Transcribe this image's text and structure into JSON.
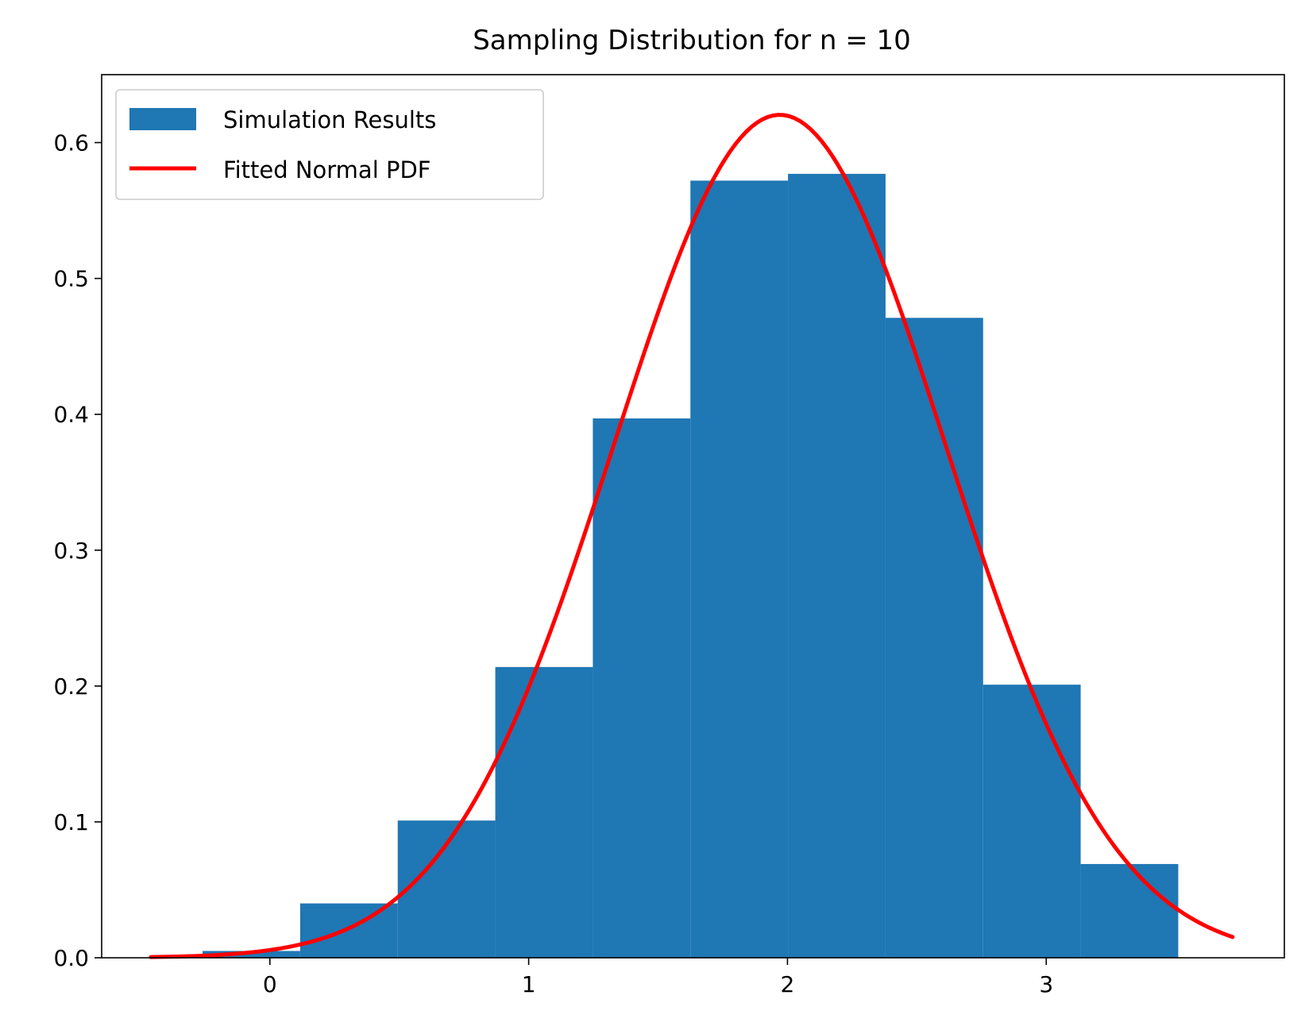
{
  "chart_data": {
    "type": "bar",
    "title": "Sampling Distribution for n = 10",
    "xlabel": "",
    "ylabel": "",
    "xlim": [
      -0.65,
      3.92
    ],
    "ylim": [
      0,
      0.65
    ],
    "x_ticks": [
      0,
      1,
      2,
      3
    ],
    "x_tick_labels": [
      "0",
      "1",
      "2",
      "3"
    ],
    "y_ticks": [
      0.0,
      0.1,
      0.2,
      0.3,
      0.4,
      0.5,
      0.6
    ],
    "y_tick_labels": [
      "0.0",
      "0.1",
      "0.2",
      "0.3",
      "0.4",
      "0.5",
      "0.6"
    ],
    "grid": false,
    "legend_position": "top-left",
    "series": [
      {
        "name": "Simulation Results",
        "kind": "histogram",
        "color": "#1f77b4",
        "bin_edges": [
          -0.26,
          0.117,
          0.494,
          0.871,
          1.248,
          1.625,
          2.002,
          2.379,
          2.756,
          3.133,
          3.51
        ],
        "values": [
          0.005,
          0.04,
          0.101,
          0.214,
          0.397,
          0.572,
          0.577,
          0.471,
          0.201,
          0.069
        ]
      },
      {
        "name": "Fitted Normal PDF",
        "kind": "line",
        "color": "#ff0000",
        "mean": 1.97,
        "std": 0.643,
        "x_range": [
          -0.46,
          3.72
        ]
      }
    ]
  }
}
